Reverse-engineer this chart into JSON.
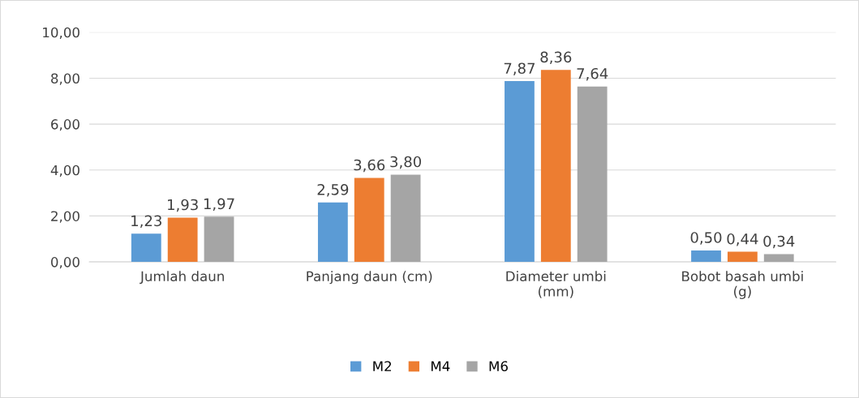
{
  "chart_data": {
    "type": "bar",
    "categories": [
      "Jumlah daun",
      "Panjang daun (cm)",
      "Diameter umbi\n(mm)",
      "Bobot basah umbi\n(g)"
    ],
    "series": [
      {
        "name": "M2",
        "color": "#5b9bd5",
        "values": [
          1.23,
          2.59,
          7.87,
          0.5
        ],
        "value_labels": [
          "1,23",
          "2,59",
          "7,87",
          "0,50"
        ]
      },
      {
        "name": "M4",
        "color": "#ed7d31",
        "values": [
          1.93,
          3.66,
          8.36,
          0.44
        ],
        "value_labels": [
          "1,93",
          "3,66",
          "8,36",
          "0,44"
        ]
      },
      {
        "name": "M6",
        "color": "#a5a5a5",
        "values": [
          1.97,
          3.8,
          7.64,
          0.34
        ],
        "value_labels": [
          "1,97",
          "3,80",
          "7,64",
          "0,34"
        ]
      }
    ],
    "ylim": [
      0,
      10
    ],
    "yticks": [
      {
        "value": 0,
        "label": "0,00"
      },
      {
        "value": 2,
        "label": "2,00"
      },
      {
        "value": 4,
        "label": "4,00"
      },
      {
        "value": 6,
        "label": "6,00"
      },
      {
        "value": 8,
        "label": "8,00"
      },
      {
        "value": 10,
        "label": "10,00"
      }
    ],
    "grid": "y",
    "legend": "bottom"
  }
}
